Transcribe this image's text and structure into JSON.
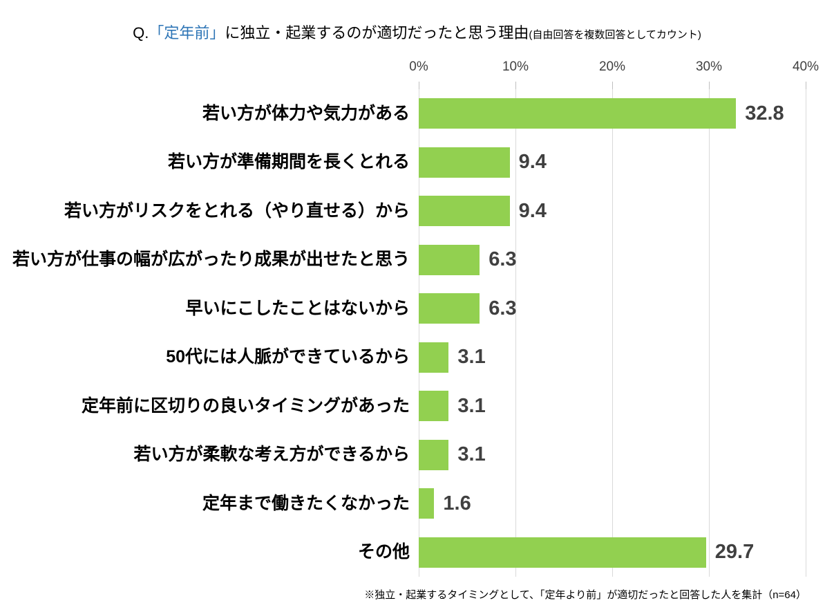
{
  "title": {
    "prefix": "Q.",
    "highlight": "「定年前」",
    "main": "に独立・起業するのが適切だったと思う理由",
    "sub": "(自由回答を複数回答としてカウント)"
  },
  "footnote": "※独立・起業するタイミングとして、「定年より前」が適切だったと回答した人を集計（n=64）",
  "colors": {
    "bar": "#92d050",
    "title_highlight": "#2e75b6",
    "gridline": "#d9d9d9",
    "tick": "#bfbfbf",
    "value_label": "#404040",
    "axis_label": "#404040"
  },
  "chart_data": {
    "type": "bar",
    "orientation": "horizontal",
    "title": "Q.「定年前」に独立・起業するのが適切だったと思う理由(自由回答を複数回答としてカウント)",
    "categories": [
      "若い方が体力や気力がある",
      "若い方が準備期間を長くとれる",
      "若い方がリスクをとれる（やり直せる）から",
      "若い方が仕事の幅が広がったり成果が出せたと思う",
      "早いにこしたことはないから",
      "50代には人脈ができているから",
      "定年前に区切りの良いタイミングがあった",
      "若い方が柔軟な考え方ができるから",
      "定年まで働きたくなかった",
      "その他"
    ],
    "values": [
      32.8,
      9.4,
      9.4,
      6.3,
      6.3,
      3.1,
      3.1,
      3.1,
      1.6,
      29.7
    ],
    "xlabel": "",
    "ylabel": "",
    "xlim": [
      0,
      40
    ],
    "x_ticks": [
      "0%",
      "10%",
      "20%",
      "30%",
      "40%"
    ],
    "grid": true,
    "legend": false,
    "data_labels": true,
    "annotation": "※独立・起業するタイミングとして、「定年より前」が適切だったと回答した人を集計（n=64）"
  }
}
